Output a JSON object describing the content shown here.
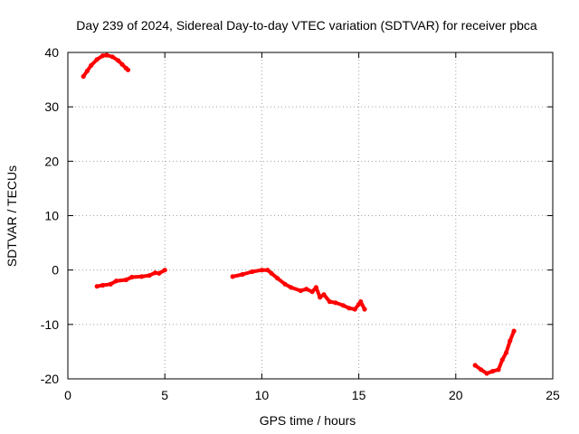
{
  "chart_data": {
    "type": "line",
    "title": "Day 239 of 2024, Sidereal Day-to-day VTEC variation (SDTVAR) for receiver pbca",
    "xlabel": "GPS time / hours",
    "ylabel": "SDTVAR / TECUs",
    "xlim": [
      0,
      25
    ],
    "ylim": [
      -20,
      40
    ],
    "xticks": [
      0,
      5,
      10,
      15,
      20,
      25
    ],
    "yticks": [
      -20,
      -10,
      0,
      10,
      20,
      30,
      40
    ],
    "grid": true,
    "series": [
      {
        "name": "SDTVAR pbca",
        "color": "#ff0000",
        "segments": [
          [
            [
              0.8,
              35.6
            ],
            [
              1.0,
              36.6
            ],
            [
              1.2,
              37.6
            ],
            [
              1.5,
              38.7
            ],
            [
              1.8,
              39.4
            ],
            [
              2.0,
              39.5
            ],
            [
              2.3,
              39.2
            ],
            [
              2.6,
              38.5
            ],
            [
              2.8,
              37.8
            ],
            [
              3.0,
              37.1
            ],
            [
              3.1,
              36.8
            ]
          ],
          [
            [
              1.5,
              -3.0
            ],
            [
              1.8,
              -2.8
            ],
            [
              2.2,
              -2.6
            ],
            [
              2.5,
              -2.0
            ],
            [
              3.0,
              -1.8
            ],
            [
              3.3,
              -1.3
            ],
            [
              3.8,
              -1.2
            ],
            [
              4.2,
              -1.0
            ],
            [
              4.5,
              -0.5
            ],
            [
              4.7,
              -0.6
            ],
            [
              5.0,
              0.0
            ]
          ],
          [
            [
              8.5,
              -1.2
            ],
            [
              9.0,
              -0.8
            ],
            [
              9.5,
              -0.3
            ],
            [
              10.0,
              0.0
            ],
            [
              10.3,
              0.0
            ],
            [
              10.5,
              -0.6
            ],
            [
              10.8,
              -1.5
            ],
            [
              11.2,
              -2.6
            ],
            [
              11.5,
              -3.2
            ],
            [
              12.0,
              -3.8
            ],
            [
              12.3,
              -3.5
            ],
            [
              12.6,
              -4.0
            ],
            [
              12.8,
              -3.2
            ],
            [
              13.0,
              -5.0
            ],
            [
              13.2,
              -4.5
            ],
            [
              13.5,
              -5.8
            ],
            [
              13.8,
              -6.0
            ],
            [
              14.2,
              -6.5
            ],
            [
              14.5,
              -7.0
            ],
            [
              14.8,
              -7.2
            ],
            [
              15.0,
              -6.3
            ],
            [
              15.1,
              -5.8
            ],
            [
              15.3,
              -7.2
            ]
          ],
          [
            [
              21.0,
              -17.5
            ],
            [
              21.3,
              -18.3
            ],
            [
              21.6,
              -19.0
            ],
            [
              21.9,
              -18.6
            ],
            [
              22.2,
              -18.3
            ],
            [
              22.4,
              -16.5
            ],
            [
              22.6,
              -15.2
            ],
            [
              22.8,
              -13.0
            ],
            [
              23.0,
              -11.2
            ]
          ]
        ]
      }
    ]
  }
}
